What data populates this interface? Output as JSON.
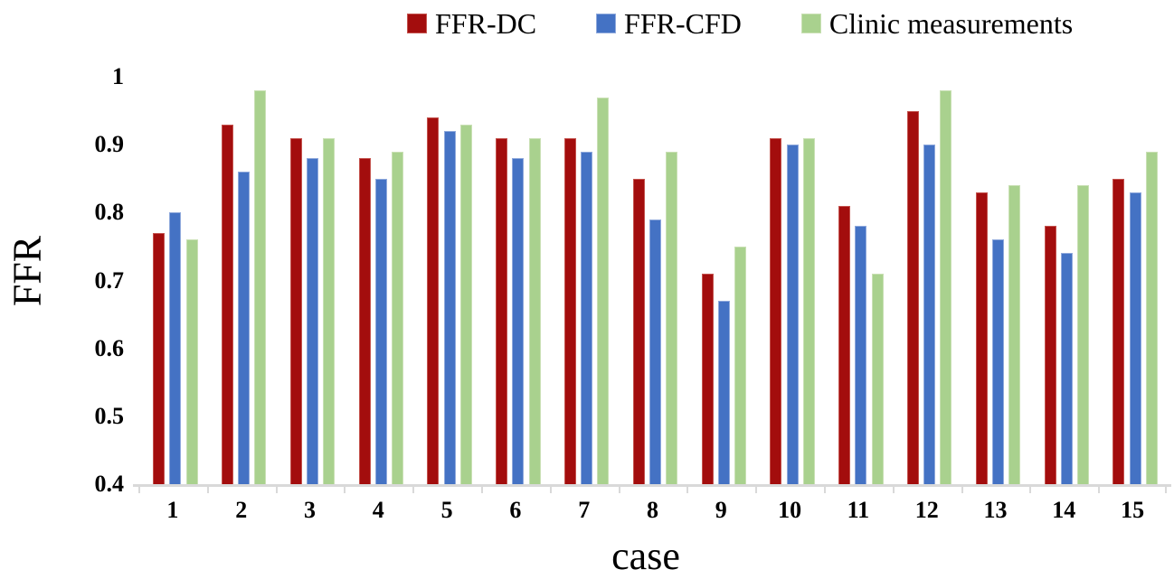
{
  "chart_data": {
    "type": "bar",
    "title": "",
    "xlabel": "case",
    "ylabel": "FFR",
    "categories": [
      "1",
      "2",
      "3",
      "4",
      "5",
      "6",
      "7",
      "8",
      "9",
      "10",
      "11",
      "12",
      "13",
      "14",
      "15"
    ],
    "series": [
      {
        "name": "FFR-DC",
        "color": "#A30D0D",
        "border": "#C4534E",
        "values": [
          0.77,
          0.93,
          0.91,
          0.88,
          0.94,
          0.91,
          0.91,
          0.85,
          0.71,
          0.91,
          0.81,
          0.95,
          0.83,
          0.78,
          0.85
        ]
      },
      {
        "name": "FFR-CFD",
        "color": "#4472C4",
        "border": "#8FA9DC",
        "values": [
          0.8,
          0.86,
          0.88,
          0.85,
          0.92,
          0.88,
          0.89,
          0.79,
          0.67,
          0.9,
          0.78,
          0.9,
          0.76,
          0.74,
          0.83
        ]
      },
      {
        "name": "Clinic measurements",
        "color": "#A9D18E",
        "border": "#C9E0B4",
        "values": [
          0.76,
          0.98,
          0.91,
          0.89,
          0.93,
          0.91,
          0.97,
          0.89,
          0.75,
          0.91,
          0.71,
          0.98,
          0.84,
          0.84,
          0.89
        ]
      }
    ],
    "ylim": [
      0.4,
      1.0
    ],
    "yticks": [
      "1",
      "0.9",
      "0.8",
      "0.7",
      "0.6",
      "0.5",
      "0.4"
    ],
    "grid": false,
    "legend_position": "top",
    "axis_color": "#D9D9D9",
    "text_color": "#000000"
  }
}
